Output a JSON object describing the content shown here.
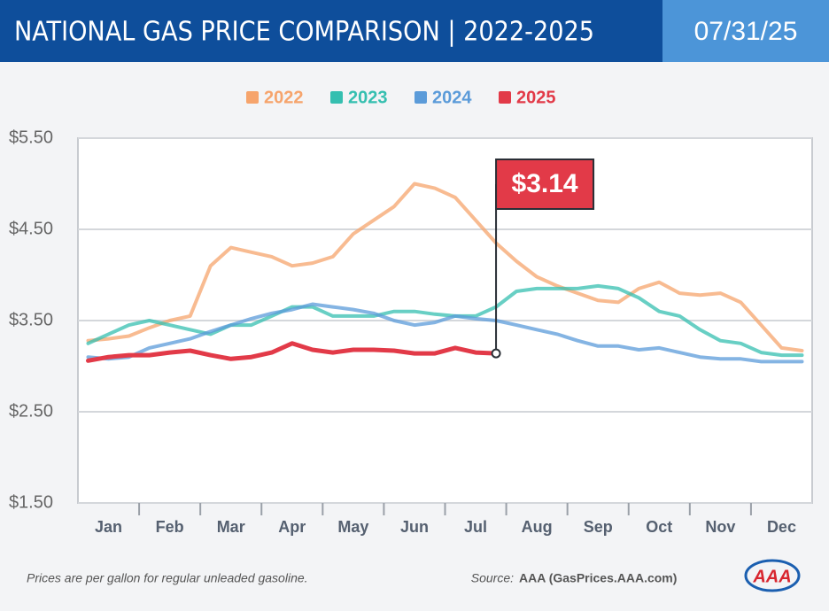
{
  "chart_data": {
    "type": "line",
    "title": "NATIONAL GAS PRICE COMPARISON | 2022-2025",
    "date": "07/31/25",
    "footnote": "Prices are per gallon for regular unleaded gasoline.",
    "source_label": "Source:",
    "source": "AAA (GasPrices.AAA.com)",
    "logo": "AAA",
    "categories": [
      null,
      "Jan",
      null,
      null,
      "Feb",
      null,
      null,
      "Mar",
      null,
      null,
      "Apr",
      null,
      null,
      "May",
      null,
      null,
      "Jun",
      null,
      null,
      "Jul",
      null,
      null,
      "Aug",
      null,
      null,
      "Sep",
      null,
      null,
      "Oct",
      null,
      null,
      "Nov",
      null,
      null,
      "Dec",
      null
    ],
    "ylim": [
      1.5,
      5.5
    ],
    "yticks": [
      {
        "value": 1.5,
        "label": "$1.50"
      },
      {
        "value": 2.5,
        "label": "$2.50"
      },
      {
        "value": 3.5,
        "label": "$3.50"
      },
      {
        "value": 4.5,
        "label": "$4.50"
      },
      {
        "value": 5.5,
        "label": "$5.50"
      }
    ],
    "grid": true,
    "legend": "top",
    "series": [
      {
        "name": "2022",
        "color": "#f6a46c",
        "values": [
          3.28,
          3.3,
          3.33,
          3.42,
          3.5,
          3.55,
          4.1,
          4.3,
          4.25,
          4.2,
          4.1,
          4.13,
          4.2,
          4.45,
          4.6,
          4.75,
          5.0,
          4.95,
          4.85,
          4.6,
          4.35,
          4.15,
          3.98,
          3.88,
          3.8,
          3.72,
          3.7,
          3.85,
          3.92,
          3.8,
          3.78,
          3.8,
          3.7,
          3.45,
          3.2,
          3.17
        ]
      },
      {
        "name": "2023",
        "color": "#35bfb0",
        "values": [
          3.25,
          3.35,
          3.45,
          3.5,
          3.45,
          3.4,
          3.35,
          3.45,
          3.45,
          3.55,
          3.65,
          3.65,
          3.55,
          3.55,
          3.55,
          3.6,
          3.6,
          3.57,
          3.55,
          3.55,
          3.65,
          3.82,
          3.85,
          3.85,
          3.85,
          3.88,
          3.85,
          3.75,
          3.6,
          3.55,
          3.4,
          3.28,
          3.25,
          3.15,
          3.12,
          3.12
        ]
      },
      {
        "name": "2024",
        "color": "#5b9bd9",
        "values": [
          3.1,
          3.08,
          3.1,
          3.2,
          3.25,
          3.3,
          3.38,
          3.45,
          3.52,
          3.58,
          3.62,
          3.68,
          3.65,
          3.62,
          3.58,
          3.5,
          3.45,
          3.48,
          3.55,
          3.52,
          3.5,
          3.45,
          3.4,
          3.35,
          3.28,
          3.22,
          3.22,
          3.18,
          3.2,
          3.15,
          3.1,
          3.08,
          3.08,
          3.05,
          3.05,
          3.05
        ]
      },
      {
        "name": "2025",
        "color": "#e23a48",
        "values": [
          3.06,
          3.1,
          3.12,
          3.12,
          3.15,
          3.17,
          3.12,
          3.08,
          3.1,
          3.15,
          3.25,
          3.18,
          3.15,
          3.18,
          3.18,
          3.17,
          3.14,
          3.14,
          3.2,
          3.15,
          3.14,
          null,
          null,
          null,
          null,
          null,
          null,
          null,
          null,
          null,
          null,
          null,
          null,
          null,
          null,
          null
        ],
        "value_labels": [
          null,
          null,
          null,
          null,
          null,
          null,
          null,
          null,
          null,
          null,
          null,
          null,
          null,
          null,
          null,
          null,
          null,
          null,
          null,
          null,
          "$3.14",
          null,
          null,
          null,
          null,
          null,
          null,
          null,
          null,
          null,
          null,
          null,
          null,
          null,
          null,
          null
        ]
      }
    ]
  }
}
